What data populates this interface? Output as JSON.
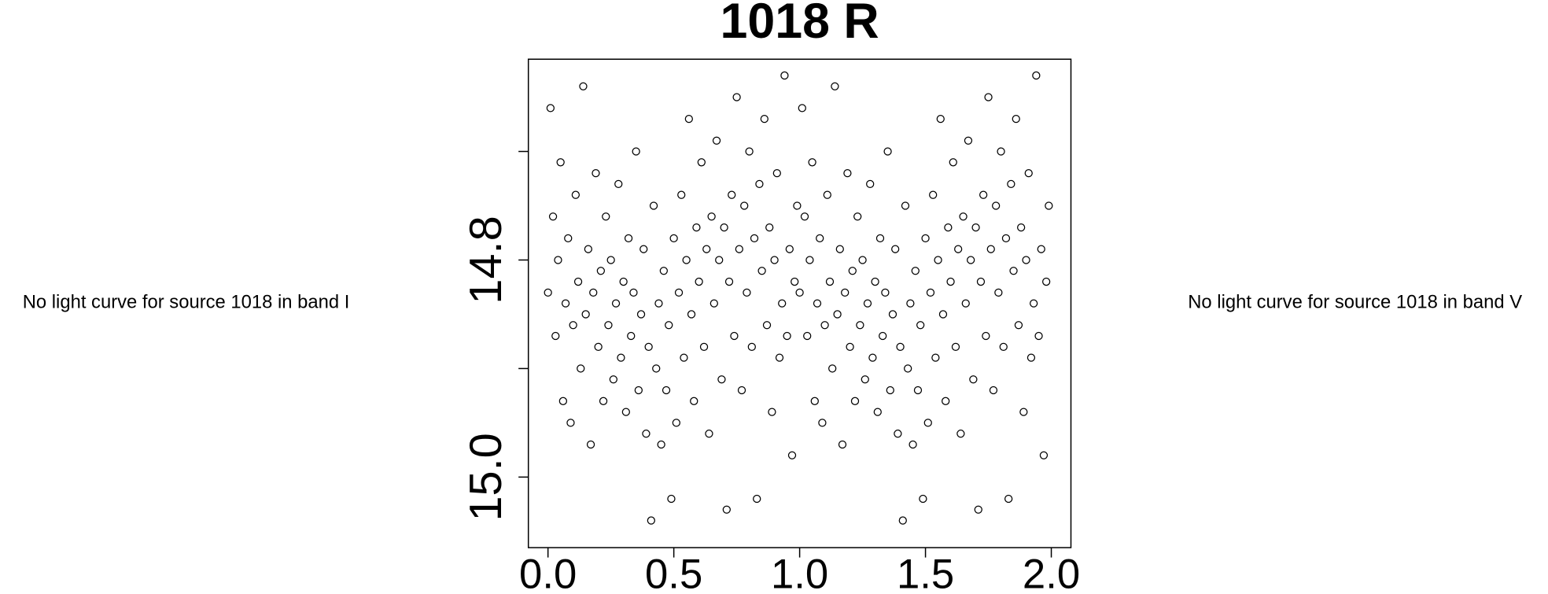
{
  "chart_data": {
    "type": "scatter",
    "title": "1018 R",
    "left_note": "No light curve for source 1018 in band I",
    "right_note": "No light curve for source 1018 in band V",
    "xlim": [
      -0.078,
      2.078
    ],
    "ylim": [
      15.065,
      14.615
    ],
    "xticks": [
      {
        "value": 0,
        "label": "0.0"
      },
      {
        "value": 0.5,
        "label": "0.5"
      },
      {
        "value": 1,
        "label": "1.0"
      },
      {
        "value": 1.5,
        "label": "1.5"
      },
      {
        "value": 2,
        "label": "2.0"
      }
    ],
    "yticks": [
      14.8,
      {
        "value": 15,
        "label": "15.0"
      }
    ],
    "yminor_ticks": [
      14.7,
      14.9
    ],
    "marker_color": "#000000",
    "x": [
      0,
      0.01,
      0.02,
      0.03,
      0.04,
      0.05,
      0.06,
      0.07,
      0.08,
      0.09,
      0.1,
      0.11,
      0.12,
      0.13,
      0.14,
      0.15,
      0.16,
      0.17,
      0.18,
      0.19,
      0.2,
      0.21,
      0.22,
      0.23,
      0.24,
      0.25,
      0.26,
      0.27,
      0.28,
      0.29,
      0.3,
      0.31,
      0.32,
      0.33,
      0.34,
      0.35,
      0.36,
      0.37,
      0.38,
      0.39,
      0.4,
      0.41,
      0.42,
      0.43,
      0.44,
      0.45,
      0.46,
      0.47,
      0.48,
      0.49,
      0.5,
      0.51,
      0.52,
      0.53,
      0.54,
      0.55,
      0.56,
      0.57,
      0.58,
      0.59,
      0.6,
      0.61,
      0.62,
      0.63,
      0.64,
      0.65,
      0.66,
      0.67,
      0.68,
      0.69,
      0.7,
      0.71,
      0.72,
      0.73,
      0.74,
      0.75,
      0.76,
      0.77,
      0.78,
      0.79,
      0.8,
      0.81,
      0.82,
      0.83,
      0.84,
      0.85,
      0.86,
      0.87,
      0.88,
      0.89,
      0.9,
      0.91,
      0.92,
      0.93,
      0.94,
      0.95,
      0.96,
      0.97,
      0.98,
      0.99,
      1,
      1.01,
      1.02,
      1.03,
      1.04,
      1.05,
      1.06,
      1.07,
      1.08,
      1.09,
      1.1,
      1.11,
      1.12,
      1.13,
      1.14,
      1.15,
      1.16,
      1.17,
      1.18,
      1.19,
      1.2,
      1.21,
      1.22,
      1.23,
      1.24,
      1.25,
      1.26,
      1.27,
      1.28,
      1.29,
      1.3,
      1.31,
      1.32,
      1.33,
      1.34,
      1.35,
      1.36,
      1.37,
      1.38,
      1.39,
      1.4,
      1.41,
      1.42,
      1.43,
      1.44,
      1.45,
      1.46,
      1.47,
      1.48,
      1.49,
      1.5,
      1.51,
      1.52,
      1.53,
      1.54,
      1.55,
      1.56,
      1.57,
      1.58,
      1.59,
      1.6,
      1.61,
      1.62,
      1.63,
      1.64,
      1.65,
      1.66,
      1.67,
      1.68,
      1.69,
      1.7,
      1.71,
      1.72,
      1.73,
      1.74,
      1.75,
      1.76,
      1.77,
      1.78,
      1.79,
      1.8,
      1.81,
      1.82,
      1.83,
      1.84,
      1.85,
      1.86,
      1.87,
      1.88,
      1.89,
      1.9,
      1.91,
      1.92,
      1.93,
      1.94,
      1.95,
      1.96,
      1.97,
      1.98,
      1.99
    ],
    "y": [
      14.83,
      14.66,
      14.76,
      14.87,
      14.8,
      14.71,
      14.93,
      14.84,
      14.78,
      14.95,
      14.86,
      14.74,
      14.82,
      14.9,
      14.64,
      14.85,
      14.79,
      14.97,
      14.83,
      14.72,
      14.88,
      14.81,
      14.93,
      14.76,
      14.86,
      14.8,
      14.91,
      14.84,
      14.73,
      14.89,
      14.82,
      14.94,
      14.78,
      14.87,
      14.83,
      14.7,
      14.92,
      14.85,
      14.79,
      14.96,
      14.88,
      15.04,
      14.75,
      14.9,
      14.84,
      14.97,
      14.81,
      14.92,
      14.86,
      15.02,
      14.78,
      14.95,
      14.83,
      14.74,
      14.89,
      14.8,
      14.67,
      14.85,
      14.93,
      14.77,
      14.82,
      14.71,
      14.88,
      14.79,
      14.96,
      14.76,
      14.84,
      14.69,
      14.8,
      14.91,
      14.77,
      15.03,
      14.82,
      14.74,
      14.87,
      14.65,
      14.79,
      14.92,
      14.75,
      14.83,
      14.7,
      14.88,
      14.78,
      15.02,
      14.73,
      14.81,
      14.67,
      14.86,
      14.77,
      14.94,
      14.8,
      14.72,
      14.89,
      14.84,
      14.63,
      14.87,
      14.79,
      14.98,
      14.82,
      14.75,
      14.83,
      14.66,
      14.76,
      14.87,
      14.8,
      14.71,
      14.93,
      14.84,
      14.78,
      14.95,
      14.86,
      14.74,
      14.82,
      14.9,
      14.64,
      14.85,
      14.79,
      14.97,
      14.83,
      14.72,
      14.88,
      14.81,
      14.93,
      14.76,
      14.86,
      14.8,
      14.91,
      14.84,
      14.73,
      14.89,
      14.82,
      14.94,
      14.78,
      14.87,
      14.83,
      14.7,
      14.92,
      14.85,
      14.79,
      14.96,
      14.88,
      15.04,
      14.75,
      14.9,
      14.84,
      14.97,
      14.81,
      14.92,
      14.86,
      15.02,
      14.78,
      14.95,
      14.83,
      14.74,
      14.89,
      14.8,
      14.67,
      14.85,
      14.93,
      14.77,
      14.82,
      14.71,
      14.88,
      14.79,
      14.96,
      14.76,
      14.84,
      14.69,
      14.8,
      14.91,
      14.77,
      15.03,
      14.82,
      14.74,
      14.87,
      14.65,
      14.79,
      14.92,
      14.75,
      14.83,
      14.7,
      14.88,
      14.78,
      15.02,
      14.73,
      14.81,
      14.67,
      14.86,
      14.77,
      14.94,
      14.8,
      14.72,
      14.89,
      14.84,
      14.63,
      14.87,
      14.79,
      14.98,
      14.82,
      14.75
    ]
  }
}
